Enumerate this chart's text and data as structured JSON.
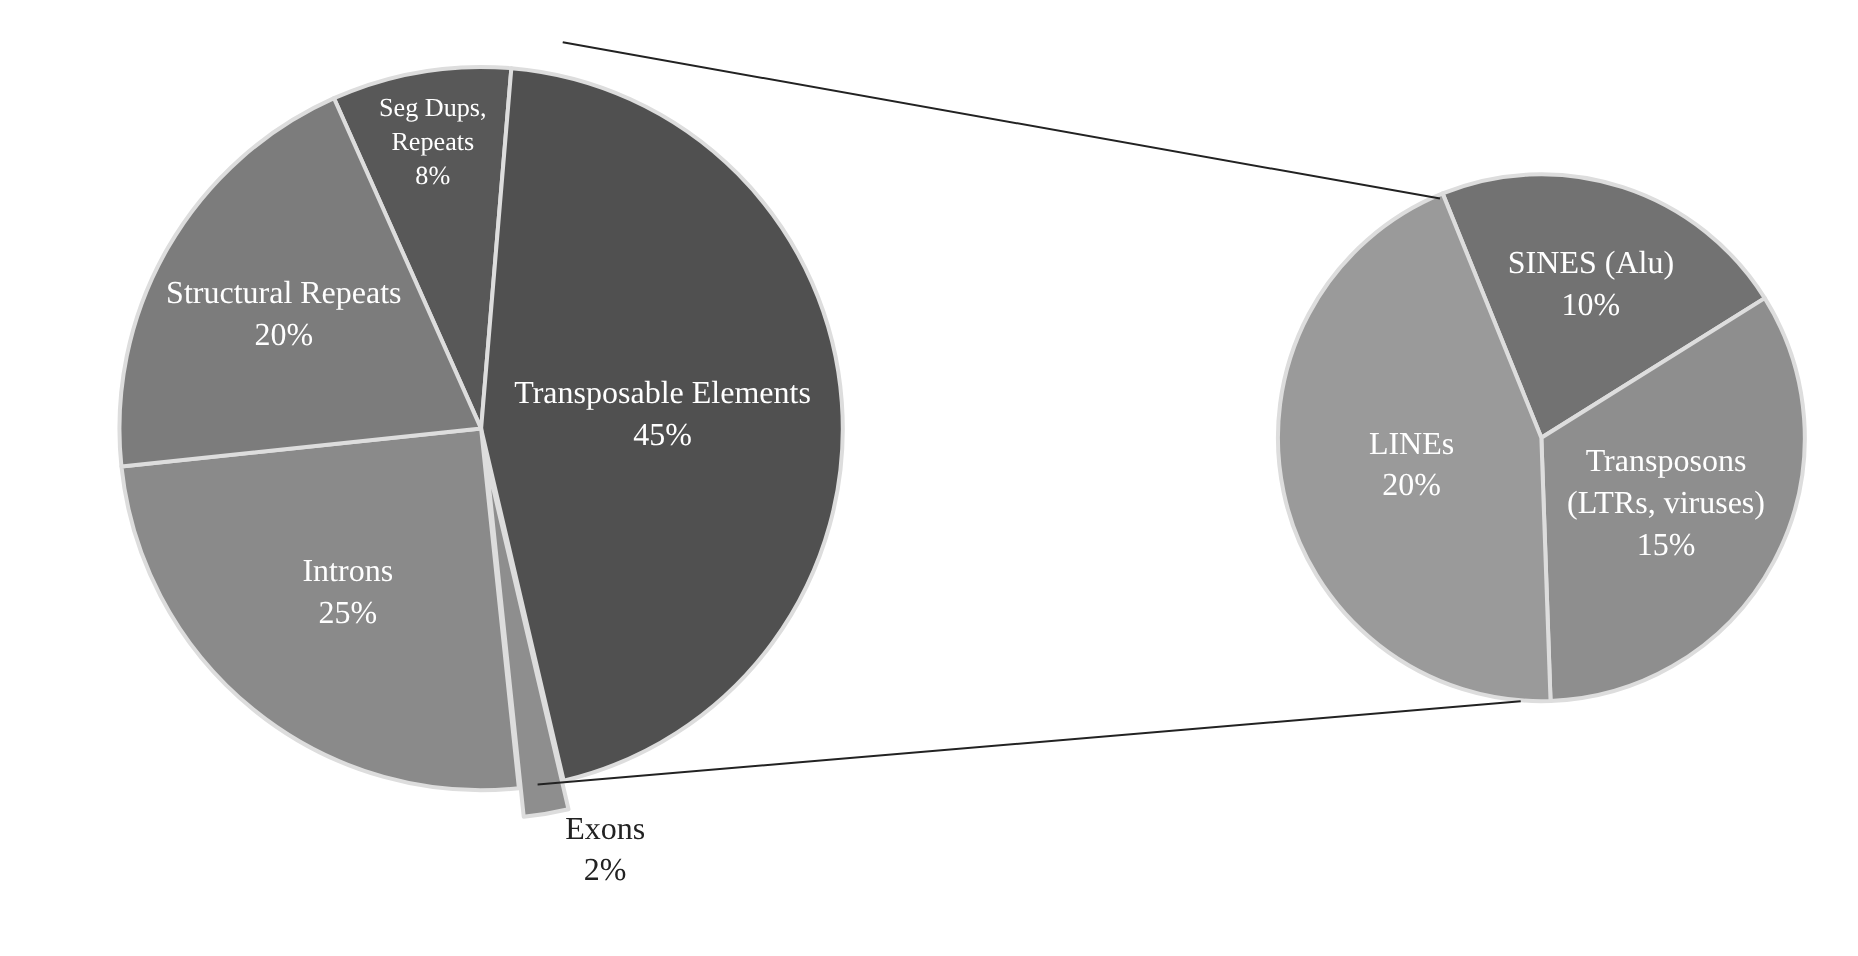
{
  "chart_data": [
    {
      "type": "pie",
      "categories": [
        "Seg Dups,\nRepeats",
        "Transposable Elements",
        "Exons",
        "Introns",
        "Structural Repeats"
      ],
      "values": [
        8,
        45,
        2,
        25,
        20
      ],
      "value_labels": [
        "8%",
        "45%",
        "2%",
        "25%",
        "20%"
      ],
      "colors": [
        "#585858",
        "#505050",
        "#8e8e8e",
        "#8a8a8a",
        "#7c7c7c"
      ]
    },
    {
      "type": "pie",
      "categories": [
        "SINES (Alu)",
        "Transposons\n(LTRs, viruses)",
        "LINEs"
      ],
      "values": [
        10,
        15,
        20
      ],
      "value_labels": [
        "10%",
        "15%",
        "20%"
      ],
      "colors": [
        "#727272",
        "#8e8e8e",
        "#9a9a9a"
      ]
    }
  ]
}
